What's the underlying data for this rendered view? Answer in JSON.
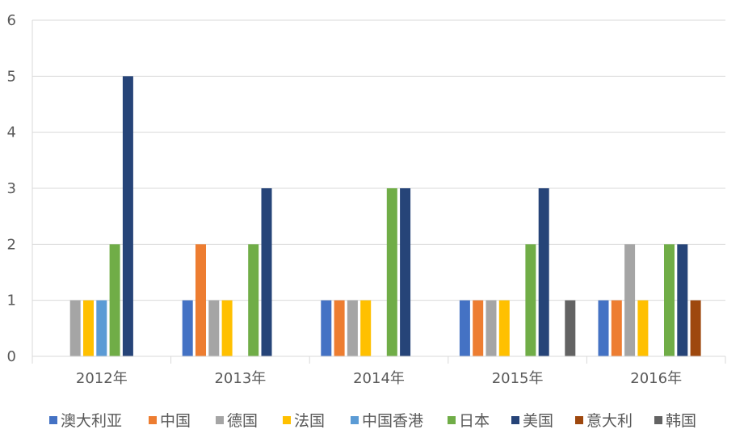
{
  "chart_data": {
    "type": "bar",
    "categories": [
      "2012年",
      "2013年",
      "2014年",
      "2015年",
      "2016年"
    ],
    "series": [
      {
        "name": "澳大利亚",
        "color": "#4472C4",
        "values": [
          0,
          1,
          1,
          1,
          1
        ]
      },
      {
        "name": "中国",
        "color": "#ED7D31",
        "values": [
          0,
          2,
          1,
          1,
          1
        ]
      },
      {
        "name": "德国",
        "color": "#A5A5A5",
        "values": [
          1,
          1,
          1,
          1,
          2
        ]
      },
      {
        "name": "法国",
        "color": "#FFC000",
        "values": [
          1,
          1,
          1,
          1,
          1
        ]
      },
      {
        "name": "中国香港",
        "color": "#5B9BD5",
        "values": [
          1,
          0,
          0,
          0,
          0
        ]
      },
      {
        "name": "日本",
        "color": "#70AD47",
        "values": [
          2,
          2,
          3,
          2,
          2
        ]
      },
      {
        "name": "美国",
        "color": "#264478",
        "values": [
          5,
          3,
          3,
          3,
          2
        ]
      },
      {
        "name": "意大利",
        "color": "#9E480E",
        "values": [
          0,
          0,
          0,
          0,
          1
        ]
      },
      {
        "name": "韩国",
        "color": "#636363",
        "values": [
          0,
          0,
          0,
          1,
          0
        ]
      }
    ],
    "yticks": [
      "0",
      "1",
      "2",
      "3",
      "4",
      "5",
      "6"
    ],
    "ylim": [
      0,
      6
    ],
    "grid": true,
    "legend": "bottom"
  }
}
